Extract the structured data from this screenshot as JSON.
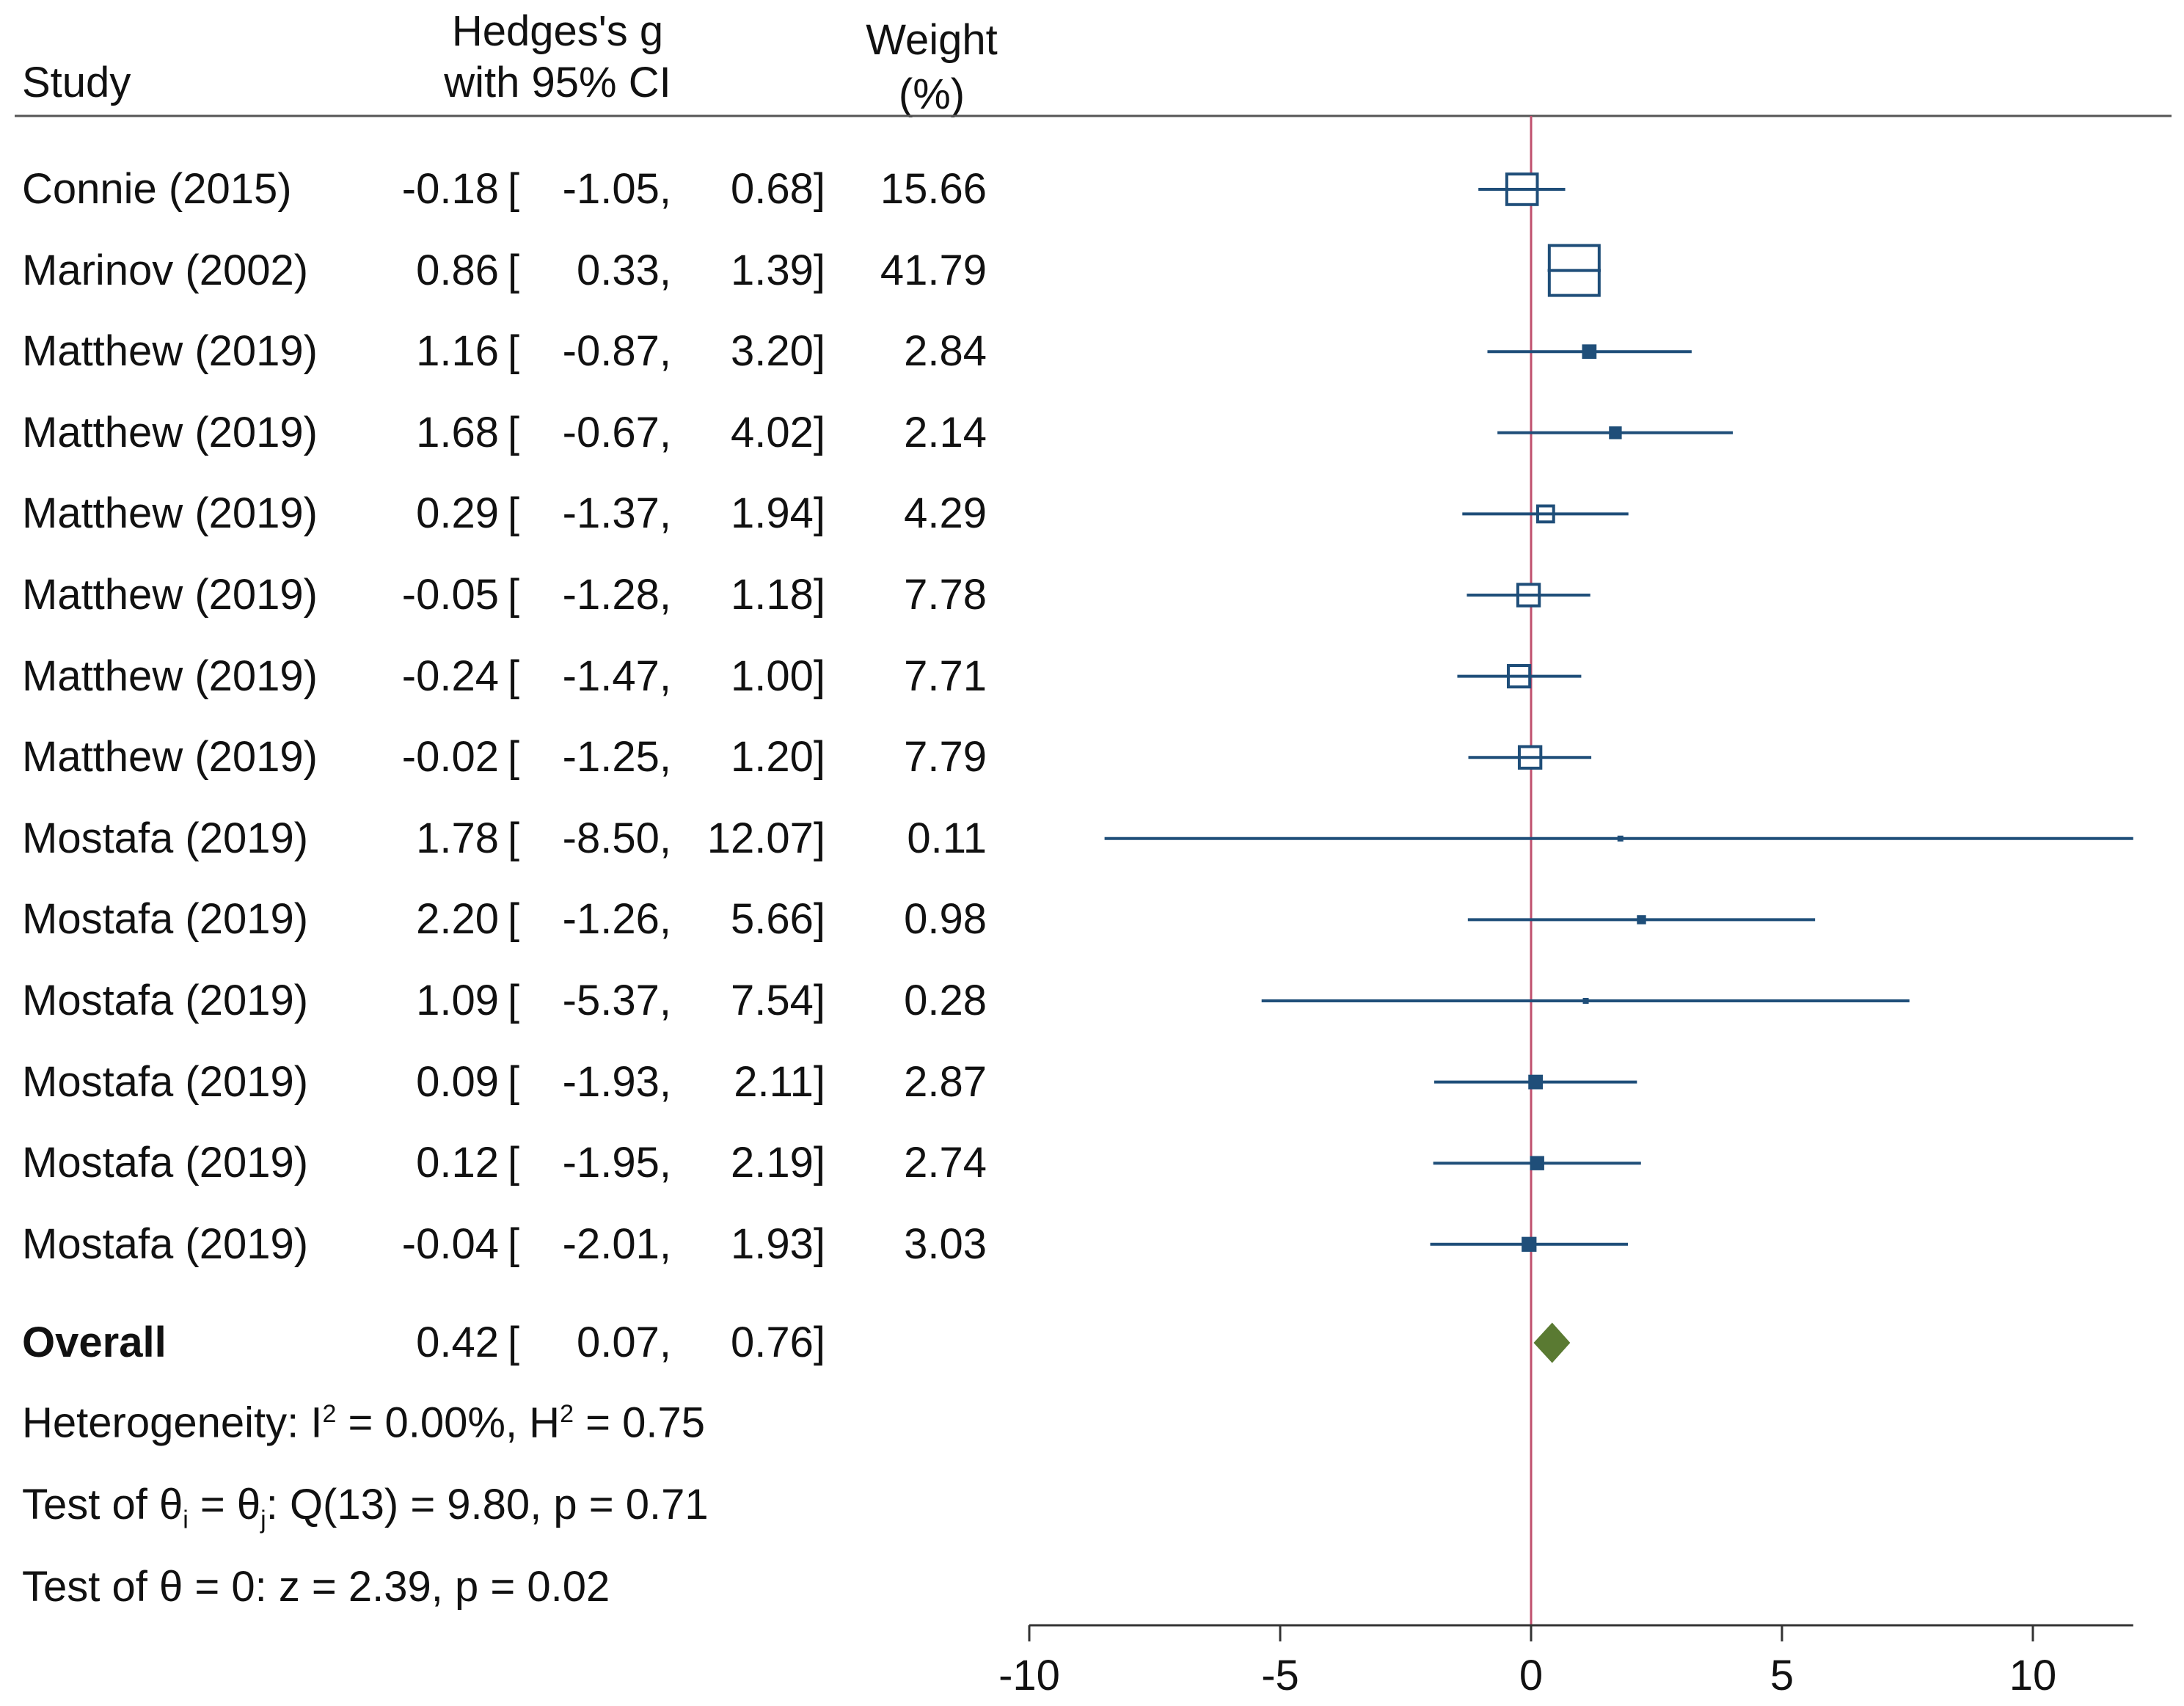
{
  "chart_data": {
    "type": "forest",
    "columns": {
      "study": "Study",
      "effect_line1": "Hedges's g",
      "effect_line2": "with 95% CI",
      "weight_line1": "Weight",
      "weight_line2": "(%)"
    },
    "studies": [
      {
        "name": "Connie (2015)",
        "g": "-0.18",
        "lo": "-1.05,",
        "hi": "0.68]",
        "w": "15.66",
        "gv": -0.18,
        "lov": -1.05,
        "hiv": 0.68,
        "wv": 15.66
      },
      {
        "name": "Marinov (2002)",
        "g": "0.86",
        "lo": "0.33,",
        "hi": "1.39]",
        "w": "41.79",
        "gv": 0.86,
        "lov": 0.33,
        "hiv": 1.39,
        "wv": 41.79
      },
      {
        "name": "Matthew (2019)",
        "g": "1.16",
        "lo": "-0.87,",
        "hi": "3.20]",
        "w": "2.84",
        "gv": 1.16,
        "lov": -0.87,
        "hiv": 3.2,
        "wv": 2.84
      },
      {
        "name": "Matthew (2019)",
        "g": "1.68",
        "lo": "-0.67,",
        "hi": "4.02]",
        "w": "2.14",
        "gv": 1.68,
        "lov": -0.67,
        "hiv": 4.02,
        "wv": 2.14
      },
      {
        "name": "Matthew (2019)",
        "g": "0.29",
        "lo": "-1.37,",
        "hi": "1.94]",
        "w": "4.29",
        "gv": 0.29,
        "lov": -1.37,
        "hiv": 1.94,
        "wv": 4.29
      },
      {
        "name": "Matthew (2019)",
        "g": "-0.05",
        "lo": "-1.28,",
        "hi": "1.18]",
        "w": "7.78",
        "gv": -0.05,
        "lov": -1.28,
        "hiv": 1.18,
        "wv": 7.78
      },
      {
        "name": "Matthew (2019)",
        "g": "-0.24",
        "lo": "-1.47,",
        "hi": "1.00]",
        "w": "7.71",
        "gv": -0.24,
        "lov": -1.47,
        "hiv": 1.0,
        "wv": 7.71
      },
      {
        "name": "Matthew (2019)",
        "g": "-0.02",
        "lo": "-1.25,",
        "hi": "1.20]",
        "w": "7.79",
        "gv": -0.02,
        "lov": -1.25,
        "hiv": 1.2,
        "wv": 7.79
      },
      {
        "name": "Mostafa (2019)",
        "g": "1.78",
        "lo": "-8.50,",
        "hi": "12.07]",
        "w": "0.11",
        "gv": 1.78,
        "lov": -8.5,
        "hiv": 12.07,
        "wv": 0.11
      },
      {
        "name": "Mostafa (2019)",
        "g": "2.20",
        "lo": "-1.26,",
        "hi": "5.66]",
        "w": "0.98",
        "gv": 2.2,
        "lov": -1.26,
        "hiv": 5.66,
        "wv": 0.98
      },
      {
        "name": "Mostafa (2019)",
        "g": "1.09",
        "lo": "-5.37,",
        "hi": "7.54]",
        "w": "0.28",
        "gv": 1.09,
        "lov": -5.37,
        "hiv": 7.54,
        "wv": 0.28
      },
      {
        "name": "Mostafa (2019)",
        "g": "0.09",
        "lo": "-1.93,",
        "hi": "2.11]",
        "w": "2.87",
        "gv": 0.09,
        "lov": -1.93,
        "hiv": 2.11,
        "wv": 2.87
      },
      {
        "name": "Mostafa (2019)",
        "g": "0.12",
        "lo": "-1.95,",
        "hi": "2.19]",
        "w": "2.74",
        "gv": 0.12,
        "lov": -1.95,
        "hiv": 2.19,
        "wv": 2.74
      },
      {
        "name": "Mostafa (2019)",
        "g": "-0.04",
        "lo": "-2.01,",
        "hi": "1.93]",
        "w": "3.03",
        "gv": -0.04,
        "lov": -2.01,
        "hiv": 1.93,
        "wv": 3.03
      }
    ],
    "overall": {
      "name": "Overall",
      "g": "0.42",
      "lo": "0.07,",
      "hi": "0.76]",
      "gv": 0.42,
      "lov": 0.07,
      "hiv": 0.76
    },
    "bracket": "[",
    "heterogeneity": {
      "prefix": "Heterogeneity: I",
      "sup1": "2",
      "mid": " = 0.00%, H",
      "sup2": "2",
      "suffix": " = 0.75"
    },
    "test_q": {
      "prefix": "Test of θ",
      "sub1": "i",
      "mid": " = θ",
      "sub2": "j",
      "suffix": ": Q(13) = 9.80, p = 0.71"
    },
    "test_z": "Test of θ = 0: z = 2.39, p = 0.02",
    "xaxis": {
      "ticks": [
        -10,
        -5,
        0,
        5,
        10
      ],
      "tick_labels": [
        "-10",
        "-5",
        "0",
        "5",
        "10"
      ],
      "xlim": [
        -10,
        12
      ]
    },
    "colors": {
      "marker": "#1f4e79",
      "zero_line": "#c0506e",
      "diamond": "#5a7a32",
      "axis": "#333333"
    }
  }
}
